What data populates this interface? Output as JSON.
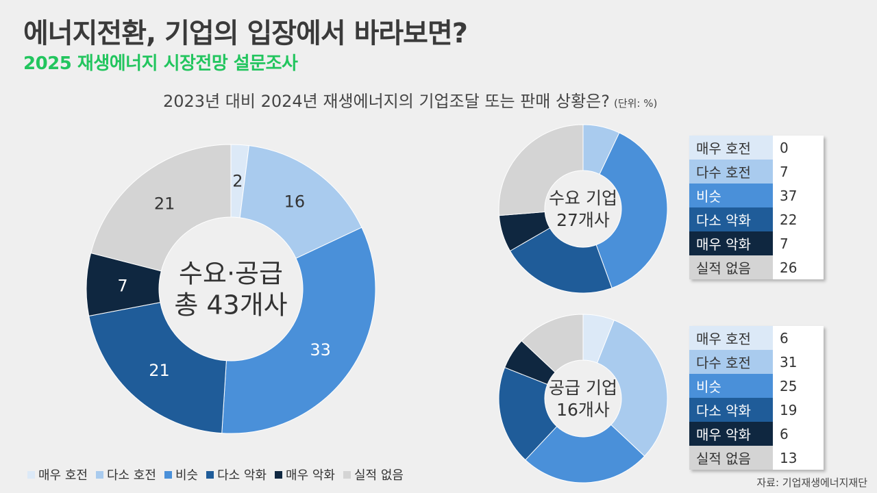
{
  "header": {
    "title": "에너지전환, 기업의 입장에서 바라보면?",
    "subtitle": "2025 재생에너지 시장전망 설문조사",
    "question": "2023년 대비 2024년 재생에너지의 기업조달 또는 판매 상황은?",
    "unit": "(단위: %)"
  },
  "source": "자료: 기업재생에너지재단",
  "chart_data": [
    {
      "type": "pie",
      "center_label": [
        "수요·공급",
        "총 43개사"
      ],
      "categories": [
        "매우 호전",
        "다소 호전",
        "비슷",
        "다소 악화",
        "매우 악화",
        "실적 없음"
      ],
      "values": [
        2,
        16,
        33,
        21,
        7,
        21
      ],
      "data_labels": [
        "2",
        "16",
        "33",
        "21",
        "7",
        "21"
      ]
    },
    {
      "type": "pie",
      "center_label": [
        "수요 기업",
        "27개사"
      ],
      "categories": [
        "매우 호전",
        "다소 호전",
        "비슷",
        "다소 악화",
        "매우 악화",
        "실적 없음"
      ],
      "values": [
        0,
        7,
        37,
        22,
        7,
        26
      ]
    },
    {
      "type": "pie",
      "center_label": [
        "공급 기업",
        "16개사"
      ],
      "categories": [
        "매우 호전",
        "다소 호전",
        "비슷",
        "다소 악화",
        "매우 악화",
        "실적 없음"
      ],
      "values": [
        6,
        31,
        25,
        19,
        6,
        13
      ]
    }
  ],
  "tables": [
    {
      "rows": [
        {
          "label": "매우 호전",
          "value": "0"
        },
        {
          "label": "다수 호전",
          "value": "7"
        },
        {
          "label": "비슷",
          "value": "37"
        },
        {
          "label": "다소 악화",
          "value": "22"
        },
        {
          "label": "매우 악화",
          "value": "7"
        },
        {
          "label": "실적 없음",
          "value": "26"
        }
      ]
    },
    {
      "rows": [
        {
          "label": "매우 호전",
          "value": "6"
        },
        {
          "label": "다수 호전",
          "value": "31"
        },
        {
          "label": "비슷",
          "value": "25"
        },
        {
          "label": "다소 악화",
          "value": "19"
        },
        {
          "label": "매우 악화",
          "value": "6"
        },
        {
          "label": "실적 없음",
          "value": "13"
        }
      ]
    }
  ],
  "legend": [
    "매우 호전",
    "다소 호전",
    "비슷",
    "다소 악화",
    "매우 악화",
    "실적 없음"
  ],
  "colors": {
    "slices": [
      "#dce9f7",
      "#a9cbee",
      "#4a90d9",
      "#1f5c99",
      "#0f2740",
      "#d4d4d4"
    ],
    "slice_text": [
      "#333333",
      "#333333",
      "#ffffff",
      "#ffffff",
      "#ffffff",
      "#333333"
    ],
    "title": "#3a3a3a",
    "subtitle": "#22c55e",
    "background": "#efefef"
  }
}
